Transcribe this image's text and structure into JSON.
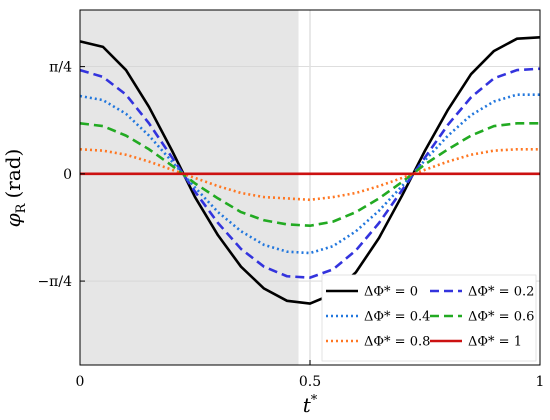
{
  "chart_data": {
    "type": "line",
    "xlabel": "t*",
    "ylabel_symbol": "φ",
    "ylabel_subscript": "R",
    "ylabel_unit": "(rad)",
    "xlim": [
      0,
      1
    ],
    "ylim": [
      -1.4,
      1.2
    ],
    "x_ticks": [
      {
        "value": 0,
        "label": "0"
      },
      {
        "value": 0.5,
        "label": "0.5"
      },
      {
        "value": 1,
        "label": "1"
      }
    ],
    "y_ticks": [
      {
        "value": 0.7854,
        "label": "π/4"
      },
      {
        "value": 0,
        "label": "0"
      },
      {
        "value": -0.7854,
        "label": "−π/4"
      }
    ],
    "grid": true,
    "shaded_region": {
      "x_start": 0,
      "x_end": 0.475,
      "color": "#e6e6e6"
    },
    "vertical_line": {
      "x": 0.5,
      "color": "#e0e0e0"
    },
    "legend_position": "lower-right",
    "x": [
      0,
      0.05,
      0.1,
      0.15,
      0.2,
      0.25,
      0.3,
      0.35,
      0.4,
      0.45,
      0.5,
      0.55,
      0.6,
      0.65,
      0.7,
      0.75,
      0.8,
      0.85,
      0.9,
      0.95,
      1
    ],
    "series": [
      {
        "name": "ΔΦ* = 0",
        "color": "#000000",
        "dash": "solid",
        "values": [
          0.97,
          0.93,
          0.76,
          0.49,
          0.17,
          -0.17,
          -0.45,
          -0.68,
          -0.84,
          -0.93,
          -0.95,
          -0.88,
          -0.72,
          -0.47,
          -0.16,
          0.17,
          0.47,
          0.73,
          0.9,
          0.99,
          1.0
        ]
      },
      {
        "name": "ΔΦ* = 0.2",
        "color": "#3333dd",
        "dash": "dashed",
        "values": [
          0.76,
          0.71,
          0.58,
          0.37,
          0.12,
          -0.13,
          -0.36,
          -0.55,
          -0.68,
          -0.75,
          -0.76,
          -0.7,
          -0.56,
          -0.36,
          -0.12,
          0.12,
          0.36,
          0.56,
          0.7,
          0.76,
          0.77
        ]
      },
      {
        "name": "ΔΦ* = 0.4",
        "color": "#2277dd",
        "dash": "dotted",
        "values": [
          0.57,
          0.54,
          0.44,
          0.28,
          0.09,
          -0.1,
          -0.28,
          -0.42,
          -0.52,
          -0.57,
          -0.58,
          -0.53,
          -0.42,
          -0.27,
          -0.09,
          0.1,
          0.28,
          0.43,
          0.53,
          0.58,
          0.58
        ]
      },
      {
        "name": "ΔΦ* = 0.6",
        "color": "#22aa22",
        "dash": "dashed",
        "values": [
          0.37,
          0.35,
          0.28,
          0.18,
          0.06,
          -0.07,
          -0.18,
          -0.28,
          -0.34,
          -0.37,
          -0.38,
          -0.35,
          -0.28,
          -0.18,
          -0.06,
          0.07,
          0.18,
          0.28,
          0.35,
          0.37,
          0.37
        ]
      },
      {
        "name": "ΔΦ* = 0.8",
        "color": "#ff7722",
        "dash": "dotted",
        "values": [
          0.18,
          0.17,
          0.14,
          0.09,
          0.03,
          -0.03,
          -0.09,
          -0.14,
          -0.17,
          -0.18,
          -0.19,
          -0.17,
          -0.14,
          -0.09,
          -0.03,
          0.03,
          0.09,
          0.14,
          0.17,
          0.18,
          0.18
        ]
      },
      {
        "name": "ΔΦ* = 1",
        "color": "#cc1111",
        "dash": "solid",
        "values": [
          0,
          0,
          0,
          0,
          0,
          0,
          0,
          0,
          0,
          0,
          0,
          0,
          0,
          0,
          0,
          0,
          0,
          0,
          0,
          0,
          0
        ]
      }
    ]
  }
}
